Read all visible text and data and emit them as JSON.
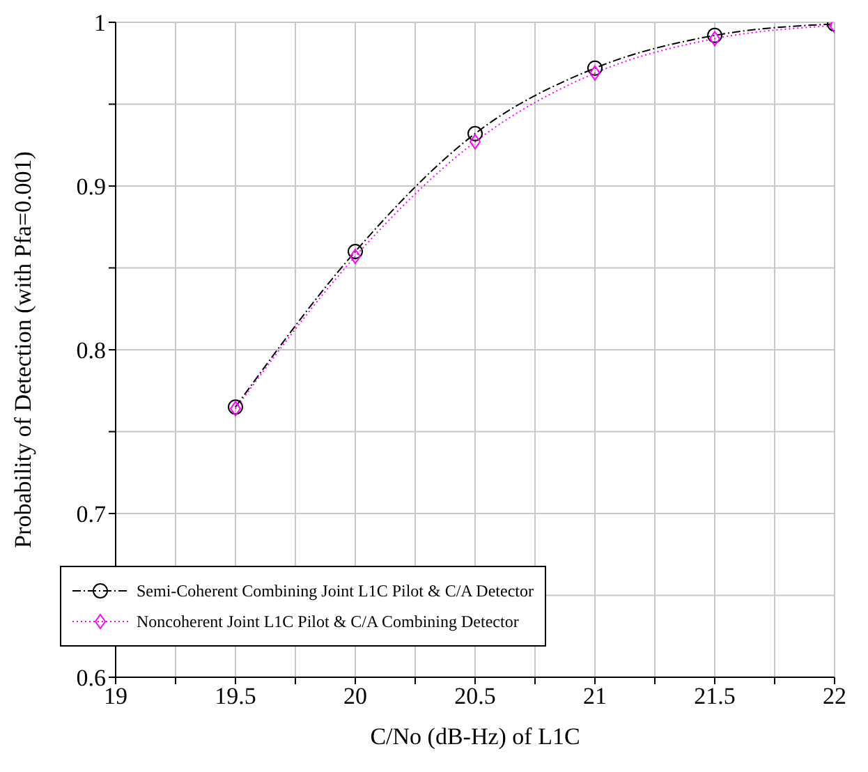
{
  "chart_data": {
    "type": "line",
    "xlabel": "C/No (dB-Hz) of L1C",
    "ylabel": "Probability of Detection (with Pfa=0.001)",
    "x": [
      19.5,
      20,
      20.5,
      21,
      21.5,
      22
    ],
    "series": [
      {
        "name": "Semi-Coherent Combining Joint L1C Pilot & C/A Detector",
        "color": "#000000",
        "values": [
          0.765,
          0.86,
          0.932,
          0.972,
          0.992,
          0.999
        ],
        "marker": "circle",
        "line_style": "dashed"
      },
      {
        "name": "Noncoherent Joint L1C Pilot & C/A Combining Detector",
        "color": "#ff00ff",
        "values": [
          0.764,
          0.857,
          0.927,
          0.969,
          0.99,
          0.998
        ],
        "marker": "diamond",
        "line_style": "dotted"
      }
    ],
    "xlim": [
      19,
      22
    ],
    "xticks": [
      19,
      {
        "value": 19.25,
        "label": null
      },
      19.5,
      {
        "value": 19.75,
        "label": null
      },
      20,
      {
        "value": 20.25,
        "label": null
      },
      20.5,
      {
        "value": 20.75,
        "label": null
      },
      21,
      {
        "value": 21.25,
        "label": null
      },
      21.5,
      {
        "value": 21.75,
        "label": null
      },
      22
    ],
    "ylim": [
      0.6,
      1
    ],
    "yticks": [
      0.6,
      {
        "value": 0.65,
        "label": null
      },
      0.7,
      {
        "value": 0.75,
        "label": null
      },
      0.8,
      {
        "value": 0.85,
        "label": null
      },
      0.9,
      {
        "value": 0.95,
        "label": null
      },
      1
    ],
    "grid": true,
    "legend": "bottom left"
  }
}
